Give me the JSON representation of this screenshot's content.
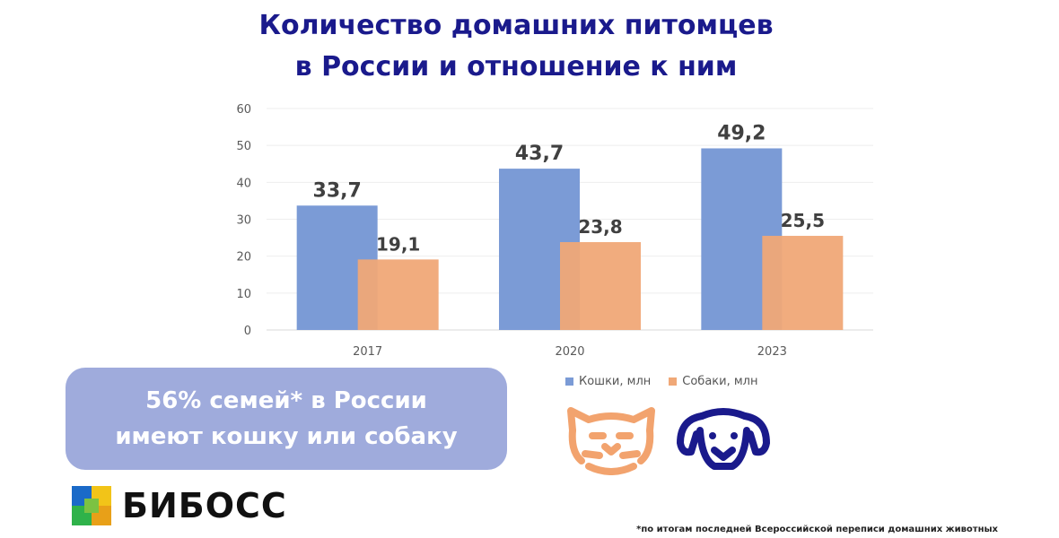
{
  "title_line1": "Количество домашних питомцев",
  "title_line2": "в России и отношение к ним",
  "callout": {
    "line1": "56% семей* в России",
    "line2": "имеют кошку или собаку"
  },
  "brand": "БИБОСС",
  "footnote": "*по итогам последней Всероссийской переписи домашних животных",
  "colors": {
    "title": "#1a1a8c",
    "cats": "#7b9bd6",
    "dogs": "#f0a877",
    "callout_bg": "#9fabdc",
    "dog_icon": "#1a1a8c",
    "cat_icon": "#f2a36e"
  },
  "icons": [
    "cat-face-icon",
    "dog-face-icon",
    "bibos-logo-icon"
  ],
  "chart_data": {
    "type": "bar",
    "categories": [
      "2017",
      "2020",
      "2023"
    ],
    "series": [
      {
        "name": "Кошки, млн",
        "values": [
          33.7,
          43.7,
          49.2
        ],
        "labels": [
          "33,7",
          "43,7",
          "49,2"
        ]
      },
      {
        "name": "Собаки, млн",
        "values": [
          19.1,
          23.8,
          25.5
        ],
        "labels": [
          "19,1",
          "23,8",
          "25,5"
        ]
      }
    ],
    "yticks": [
      "0",
      "10",
      "20",
      "30",
      "40",
      "50",
      "60"
    ],
    "ylim": [
      0,
      60
    ],
    "grid": true,
    "legend": "bottom"
  }
}
